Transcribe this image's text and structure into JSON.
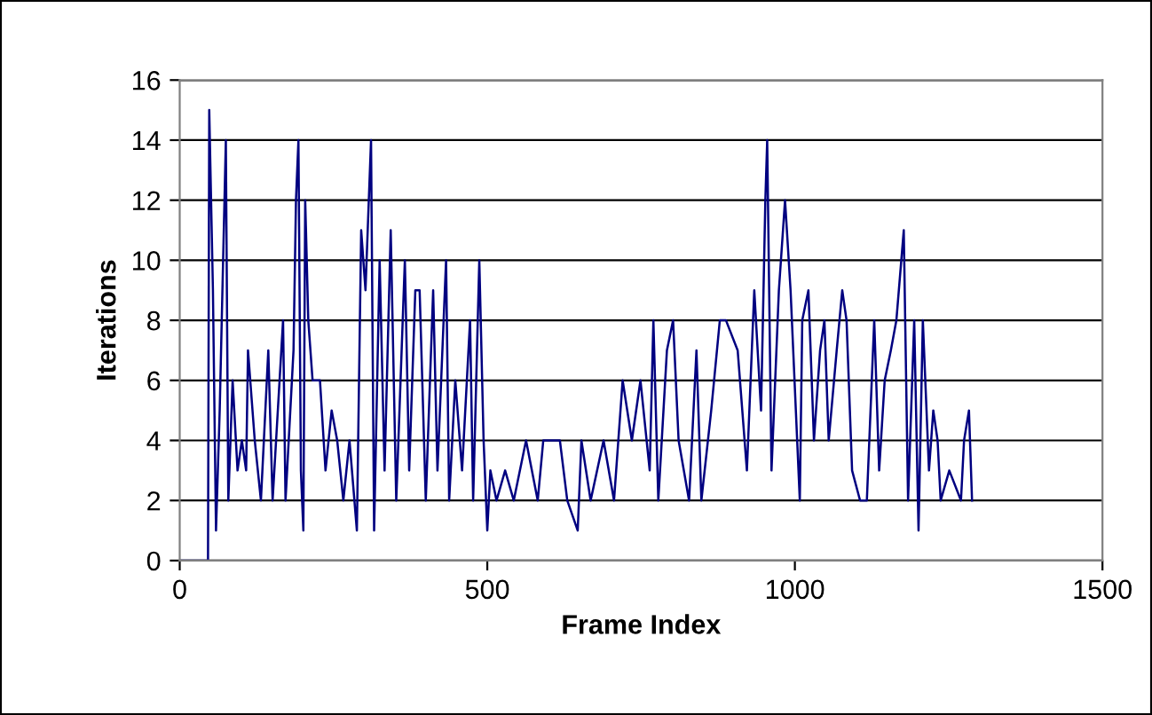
{
  "chart_data": {
    "type": "line",
    "xlabel": "Frame Index",
    "ylabel": "Iterations",
    "series": [
      {
        "color": "#000080",
        "x": [
          0,
          46,
          48,
          54,
          59,
          65,
          75,
          79,
          86,
          94,
          101,
          108,
          111,
          122,
          132,
          144,
          151,
          168,
          172,
          185,
          189,
          193,
          197,
          201,
          204,
          209,
          216,
          228,
          237,
          247,
          256,
          266,
          276,
          288,
          295,
          302,
          311,
          316,
          325,
          333,
          343,
          352,
          366,
          373,
          383,
          390,
          400,
          412,
          419,
          433,
          438,
          448,
          459,
          472,
          477,
          487,
          494,
          500,
          505,
          515,
          529,
          543,
          563,
          582,
          591,
          618,
          630,
          647,
          653,
          668,
          689,
          706,
          720,
          735,
          749,
          764,
          770,
          778,
          792,
          802,
          811,
          828,
          840,
          848,
          864,
          878,
          888,
          907,
          922,
          934,
          945,
          952,
          955,
          962,
          974,
          984,
          993,
          1008,
          1012,
          1022,
          1031,
          1041,
          1048,
          1055,
          1068,
          1077,
          1084,
          1093,
          1106,
          1117,
          1129,
          1137,
          1146,
          1156,
          1165,
          1177,
          1184,
          1194,
          1201,
          1208,
          1218,
          1225,
          1232,
          1237,
          1251,
          1270,
          1275,
          1283,
          1288
        ],
        "values": [
          0,
          0,
          15,
          9,
          1,
          5,
          14,
          2,
          6,
          3,
          4,
          3,
          7,
          4,
          2,
          7,
          2,
          8,
          2,
          7,
          12,
          14,
          3,
          1,
          12,
          8,
          6,
          6,
          3,
          5,
          4,
          2,
          4,
          1,
          11,
          9,
          14,
          1,
          10,
          3,
          11,
          2,
          10,
          3,
          9,
          9,
          2,
          9,
          3,
          10,
          2,
          6,
          3,
          8,
          2,
          10,
          4,
          1,
          3,
          2,
          3,
          2,
          4,
          2,
          4,
          4,
          2,
          1,
          4,
          2,
          4,
          2,
          6,
          4,
          6,
          3,
          8,
          2,
          7,
          8,
          4,
          2,
          7,
          2,
          5,
          8,
          8,
          7,
          3,
          9,
          5,
          12,
          14,
          3,
          9,
          12,
          9,
          2,
          8,
          9,
          4,
          7,
          8,
          4,
          7,
          9,
          8,
          3,
          2,
          2,
          8,
          3,
          6,
          7,
          8,
          11,
          2,
          8,
          1,
          8,
          3,
          5,
          4,
          2,
          3,
          2,
          4,
          5,
          2
        ]
      }
    ],
    "xlim": [
      0,
      1500
    ],
    "xticks": [
      0,
      500,
      1000,
      1500
    ],
    "ylim": [
      0,
      16
    ],
    "yticks": [
      0,
      2,
      4,
      6,
      8,
      10,
      12,
      14,
      16
    ],
    "grid": "y",
    "legend": false,
    "marker": "none",
    "line_style": "solid"
  }
}
